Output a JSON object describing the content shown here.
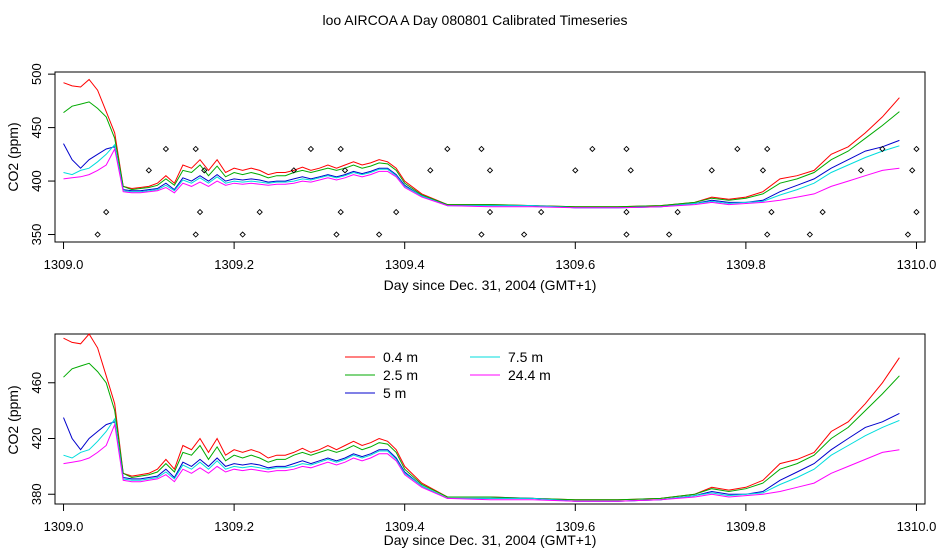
{
  "title": "loo AIRCOA A  Day 080801  Calibrated Timeseries",
  "chart_data": [
    {
      "type": "line",
      "xlabel": "Day since Dec. 31, 2004 (GMT+1)",
      "ylabel": "CO2 (ppm)",
      "xlim": [
        1308.99,
        1310.01
      ],
      "ylim": [
        343,
        502
      ],
      "xticks": [
        "1309.0",
        "1309.2",
        "1309.4",
        "1309.6",
        "1309.8",
        "1310.0"
      ],
      "yticks": [
        "350",
        "400",
        "450",
        "500"
      ],
      "legend": "none",
      "x": [
        1309.0,
        1309.01,
        1309.02,
        1309.03,
        1309.04,
        1309.05,
        1309.06,
        1309.07,
        1309.08,
        1309.09,
        1309.1,
        1309.11,
        1309.12,
        1309.13,
        1309.14,
        1309.15,
        1309.16,
        1309.17,
        1309.18,
        1309.19,
        1309.2,
        1309.21,
        1309.22,
        1309.23,
        1309.24,
        1309.25,
        1309.26,
        1309.27,
        1309.28,
        1309.29,
        1309.3,
        1309.31,
        1309.32,
        1309.33,
        1309.34,
        1309.35,
        1309.36,
        1309.37,
        1309.38,
        1309.39,
        1309.4,
        1309.42,
        1309.45,
        1309.5,
        1309.55,
        1309.6,
        1309.65,
        1309.7,
        1309.74,
        1309.76,
        1309.78,
        1309.8,
        1309.82,
        1309.84,
        1309.86,
        1309.88,
        1309.9,
        1309.92,
        1309.94,
        1309.96,
        1309.98
      ],
      "series": [
        {
          "color": "#ff0000",
          "values": [
            492,
            489,
            488,
            495,
            485,
            465,
            445,
            395,
            393,
            394,
            395,
            398,
            405,
            398,
            415,
            412,
            420,
            410,
            420,
            408,
            412,
            410,
            412,
            410,
            406,
            408,
            408,
            410,
            413,
            410,
            412,
            415,
            412,
            415,
            418,
            415,
            417,
            420,
            418,
            412,
            400,
            388,
            378,
            378,
            377,
            376,
            376,
            377,
            380,
            385,
            383,
            385,
            390,
            402,
            405,
            410,
            425,
            432,
            445,
            460,
            478
          ]
        },
        {
          "color": "#00aa00",
          "values": [
            464,
            470,
            472,
            474,
            468,
            460,
            440,
            395,
            392,
            393,
            394,
            396,
            402,
            396,
            410,
            408,
            415,
            405,
            414,
            404,
            408,
            406,
            408,
            406,
            403,
            405,
            405,
            408,
            410,
            408,
            410,
            412,
            410,
            412,
            415,
            412,
            414,
            417,
            416,
            410,
            398,
            387,
            378,
            378,
            377,
            376,
            376,
            377,
            380,
            384,
            382,
            384,
            388,
            398,
            402,
            408,
            420,
            428,
            440,
            452,
            465
          ]
        },
        {
          "color": "#0000cc",
          "values": [
            435,
            420,
            412,
            420,
            425,
            430,
            432,
            392,
            391,
            391,
            392,
            393,
            398,
            392,
            403,
            400,
            405,
            400,
            406,
            400,
            402,
            401,
            402,
            401,
            399,
            400,
            400,
            402,
            404,
            402,
            404,
            406,
            404,
            406,
            409,
            407,
            409,
            412,
            412,
            406,
            396,
            386,
            377,
            377,
            377,
            375,
            375,
            376,
            379,
            382,
            380,
            380,
            382,
            390,
            396,
            402,
            412,
            420,
            428,
            432,
            438
          ]
        },
        {
          "color": "#00dddd",
          "values": [
            408,
            406,
            410,
            412,
            418,
            425,
            434,
            391,
            390,
            390,
            391,
            392,
            396,
            391,
            401,
            398,
            403,
            398,
            404,
            398,
            400,
            399,
            400,
            399,
            398,
            399,
            399,
            400,
            402,
            401,
            403,
            405,
            403,
            405,
            408,
            406,
            408,
            411,
            411,
            405,
            395,
            386,
            377,
            377,
            377,
            375,
            375,
            376,
            379,
            381,
            379,
            380,
            381,
            387,
            392,
            398,
            408,
            415,
            422,
            428,
            433
          ]
        },
        {
          "color": "#ff00ff",
          "values": [
            402,
            403,
            404,
            406,
            410,
            415,
            430,
            390,
            389,
            389,
            390,
            391,
            394,
            389,
            398,
            395,
            399,
            395,
            400,
            396,
            398,
            397,
            398,
            397,
            396,
            397,
            397,
            398,
            400,
            399,
            401,
            403,
            401,
            403,
            406,
            404,
            406,
            409,
            409,
            404,
            394,
            385,
            377,
            376,
            376,
            375,
            375,
            376,
            378,
            380,
            378,
            379,
            380,
            382,
            385,
            388,
            395,
            400,
            405,
            410,
            412
          ]
        }
      ],
      "points": {
        "x": [
          1309.04,
          1309.05,
          1309.1,
          1309.12,
          1309.155,
          1309.16,
          1309.165,
          1309.155,
          1309.21,
          1309.23,
          1309.27,
          1309.29,
          1309.32,
          1309.325,
          1309.33,
          1309.325,
          1309.37,
          1309.39,
          1309.43,
          1309.45,
          1309.49,
          1309.5,
          1309.5,
          1309.49,
          1309.54,
          1309.56,
          1309.6,
          1309.62,
          1309.66,
          1309.66,
          1309.665,
          1309.66,
          1309.71,
          1309.72,
          1309.76,
          1309.79,
          1309.825,
          1309.83,
          1309.82,
          1309.825,
          1309.875,
          1309.89,
          1309.935,
          1309.96,
          1309.99,
          1310.0,
          1309.995,
          1310.0
        ],
        "y": [
          350,
          371,
          410,
          430,
          350,
          371,
          410,
          430,
          350,
          371,
          410,
          430,
          350,
          371,
          410,
          430,
          350,
          371,
          410,
          430,
          350,
          371,
          410,
          430,
          350,
          371,
          410,
          430,
          350,
          371,
          410,
          430,
          350,
          371,
          410,
          430,
          350,
          371,
          410,
          430,
          350,
          371,
          410,
          430,
          350,
          371,
          410,
          430
        ]
      }
    },
    {
      "type": "line",
      "xlabel": "Day since Dec. 31, 2004 (GMT+1)",
      "ylabel": "CO2 (ppm)",
      "xlim": [
        1308.99,
        1310.01
      ],
      "ylim": [
        373,
        495
      ],
      "xticks": [
        "1309.0",
        "1309.2",
        "1309.4",
        "1309.6",
        "1309.8",
        "1310.0"
      ],
      "yticks": [
        "380",
        "420",
        "460"
      ],
      "legend": "top-left",
      "legend_entries": [
        {
          "name": "0.4 m",
          "color": "#ff0000"
        },
        {
          "name": "2.5 m",
          "color": "#00aa00"
        },
        {
          "name": "5 m",
          "color": "#0000cc"
        },
        {
          "name": "7.5 m",
          "color": "#00dddd"
        },
        {
          "name": "24.4 m",
          "color": "#ff00ff"
        }
      ]
    }
  ]
}
